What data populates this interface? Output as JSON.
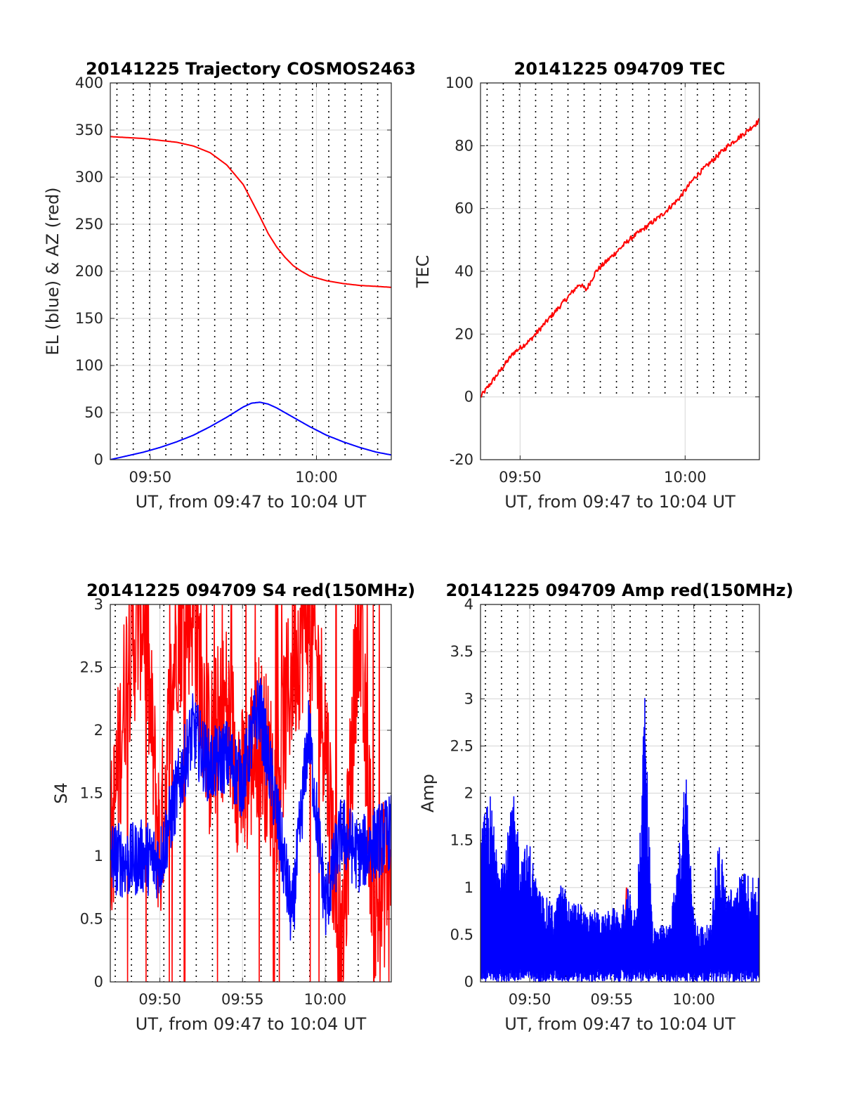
{
  "chart_data": [
    {
      "type": "line",
      "title": "20141225 Trajectory COSMOS2463",
      "xlabel": "UT, from 09:47 to 10:04 UT",
      "ylabel": "EL (blue) & AZ (red)",
      "xlim_minutes": [
        "09:47.6",
        "10:04.5"
      ],
      "ylim": [
        0,
        400
      ],
      "xticks": [
        "09:50",
        "10:00"
      ],
      "yticks": [
        "0",
        "50",
        "100",
        "150",
        "200",
        "250",
        "300",
        "350",
        "400"
      ],
      "grid": "on",
      "series": [
        {
          "color": "#ff0000",
          "x": [
            "09:47.6",
            "09:48.6",
            "09:49.6",
            "09:50.6",
            "09:51.6",
            "09:52.6",
            "09:53.6",
            "09:54.6",
            "09:55.6",
            "09:56.6",
            "09:57.1",
            "09:57.6",
            "09:58.1",
            "09:58.6",
            "09:59.1",
            "09:59.6",
            "10:00.6",
            "10:01.6",
            "10:02.6",
            "10:03.6",
            "10:04.5"
          ],
          "values": [
            343,
            342,
            341,
            339,
            337,
            333,
            326,
            313,
            292,
            258,
            240,
            226,
            215,
            206,
            200,
            195,
            190,
            187,
            185,
            184,
            183
          ]
        },
        {
          "color": "#0000ff",
          "x": [
            "09:47.6",
            "09:48.6",
            "09:49.6",
            "09:50.6",
            "09:51.6",
            "09:52.6",
            "09:53.6",
            "09:54.6",
            "09:55.6",
            "09:56.1",
            "09:56.6",
            "09:57.1",
            "09:57.6",
            "09:58.6",
            "09:59.6",
            "10:00.6",
            "10:01.6",
            "10:02.6",
            "10:03.6",
            "10:04.5"
          ],
          "values": [
            0,
            4,
            8,
            13,
            19,
            26,
            35,
            45,
            56,
            60,
            61,
            59,
            55,
            45,
            35,
            26,
            19,
            13,
            8,
            5
          ]
        }
      ]
    },
    {
      "type": "line",
      "title": "20141225 094709 TEC",
      "xlabel": "UT, from 09:47 to 10:04 UT",
      "ylabel": "TEC",
      "xlim_minutes": [
        "09:47.6",
        "10:04.5"
      ],
      "ylim": [
        -20,
        100
      ],
      "xticks": [
        "09:50",
        "10:00"
      ],
      "yticks": [
        "-20",
        "0",
        "20",
        "40",
        "60",
        "80",
        "100"
      ],
      "grid": "on",
      "series": [
        {
          "color": "#ff0000",
          "x": [
            "09:47.6",
            "09:48.6",
            "09:49.6",
            "09:50.6",
            "09:51.6",
            "09:52.6",
            "09:53.6",
            "09:54.0",
            "09:54.6",
            "09:55.6",
            "09:56.6",
            "09:57.6",
            "09:58.6",
            "09:59.6",
            "10:00.6",
            "10:01.6",
            "10:02.6",
            "10:03.6",
            "10:04.5"
          ],
          "values": [
            0,
            7,
            14,
            18,
            24,
            30,
            36,
            34,
            40,
            45,
            50,
            54,
            58,
            63,
            70,
            75,
            80,
            84,
            88
          ]
        }
      ]
    },
    {
      "type": "line",
      "title": "20141225 094709 S4 red(150MHz)",
      "xlabel": "UT, from 09:47 to 10:04 UT",
      "ylabel": "S4",
      "xlim_minutes": [
        "09:47.0",
        "10:04.0"
      ],
      "ylim": [
        0,
        3
      ],
      "xticks": [
        "09:50",
        "09:55",
        "10:00"
      ],
      "yticks": [
        "0",
        "0.5",
        "1",
        "1.5",
        "2",
        "2.5",
        "3"
      ],
      "grid": "on",
      "series": [
        {
          "color": "#ff0000",
          "x": [
            "09:47.0",
            "09:48.0",
            "09:49.0",
            "09:50.0",
            "09:51.0",
            "09:52.0",
            "09:53.0",
            "09:54.0",
            "09:55.0",
            "09:56.0",
            "09:57.0",
            "09:58.0",
            "09:59.0",
            "10:00.0",
            "10:01.0",
            "10:02.0",
            "10:03.0",
            "10:04.0"
          ],
          "values": [
            1.0,
            2.5,
            3.0,
            1.0,
            2.8,
            3.0,
            1.8,
            2.2,
            1.5,
            2.0,
            1.5,
            2.5,
            3.0,
            2.0,
            0.0,
            3.0,
            0.5,
            1.0
          ]
        },
        {
          "color": "#0000ff",
          "x": [
            "09:47.0",
            "09:48.0",
            "09:49.0",
            "09:50.0",
            "09:51.0",
            "09:52.0",
            "09:53.0",
            "09:54.0",
            "09:55.0",
            "09:56.0",
            "09:57.0",
            "09:58.0",
            "09:59.0",
            "10:00.0",
            "10:01.0",
            "10:02.0",
            "10:03.0",
            "10:04.0"
          ],
          "values": [
            1.0,
            0.95,
            1.0,
            0.95,
            1.5,
            2.0,
            1.7,
            1.8,
            1.6,
            2.2,
            1.4,
            0.5,
            2.0,
            0.6,
            1.2,
            1.0,
            1.1,
            1.2
          ]
        }
      ]
    },
    {
      "type": "line",
      "title": "20141225 094709 Amp red(150MHz)",
      "xlabel": "UT, from 09:47 to 10:04 UT",
      "ylabel": "Amp",
      "xlim_minutes": [
        "09:47.0",
        "10:04.0"
      ],
      "ylim": [
        0,
        4
      ],
      "xticks": [
        "09:50",
        "09:55",
        "10:00"
      ],
      "yticks": [
        "0",
        "0.5",
        "1",
        "1.5",
        "2",
        "2.5",
        "3",
        "3.5",
        "4"
      ],
      "grid": "on",
      "series": [
        {
          "color": "#ff0000",
          "x": [
            "09:55.8",
            "09:55.9"
          ],
          "values": [
            0.8,
            1.0
          ]
        },
        {
          "color": "#0000ff",
          "x": [
            "09:47.0",
            "09:47.5",
            "09:48.0",
            "09:48.5",
            "09:49.0",
            "09:49.5",
            "09:50.0",
            "09:50.5",
            "09:51.0",
            "09:51.5",
            "09:52.0",
            "09:52.5",
            "09:53.0",
            "09:53.5",
            "09:54.0",
            "09:54.5",
            "09:55.0",
            "09:55.5",
            "09:56.0",
            "09:56.5",
            "09:57.0",
            "09:57.5",
            "09:58.0",
            "09:58.5",
            "09:59.0",
            "09:59.5",
            "10:00.0",
            "10:00.5",
            "10:01.0",
            "10:01.5",
            "10:02.0",
            "10:02.5",
            "10:03.0",
            "10:03.5",
            "10:04.0"
          ],
          "values": [
            1.5,
            2.1,
            1.5,
            1.4,
            2.0,
            1.4,
            1.5,
            1.0,
            0.9,
            0.8,
            1.1,
            0.8,
            0.9,
            0.7,
            0.8,
            0.7,
            0.8,
            0.7,
            1.0,
            0.7,
            3.1,
            0.6,
            0.6,
            0.6,
            1.2,
            2.4,
            0.7,
            0.6,
            0.6,
            1.6,
            1.0,
            1.0,
            1.2,
            1.1,
            1.1
          ]
        }
      ]
    }
  ]
}
